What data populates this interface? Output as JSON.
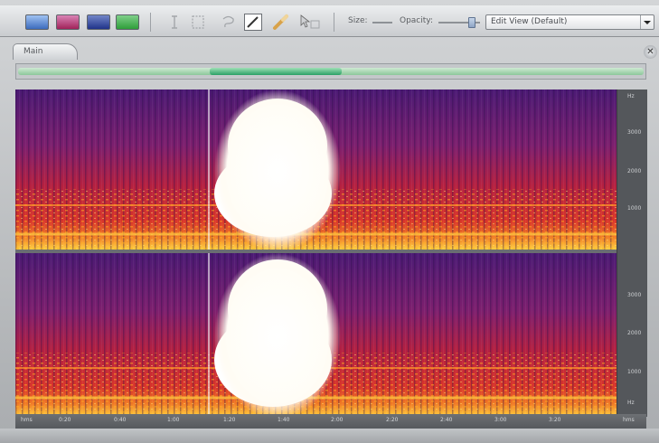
{
  "toolbar": {
    "buttons": [
      {
        "name": "spectral-frequency-display-button",
        "color": "#3c6bbd"
      },
      {
        "name": "spectral-pan-display-button",
        "color": "#a1235a"
      },
      {
        "name": "spectral-phase-display-button",
        "color": "#20338a"
      },
      {
        "name": "waveform-display-button",
        "color": "#2f9e3a"
      }
    ],
    "tools": [
      "time-selection-tool-icon",
      "marquee-tool-icon",
      "lasso-tool-icon",
      "brush-tool-icon",
      "spot-healing-tool-icon",
      "move-tool-icon"
    ],
    "size_label": "Size:",
    "opacity_label": "Opacity:",
    "view_select": "Edit View (Default)"
  },
  "tab": {
    "label": "Main"
  },
  "overview": {
    "visible_start": 0.31,
    "visible_end": 0.52
  },
  "frequency_ruler_top": [
    "Hz",
    "3000",
    "2000",
    "1000"
  ],
  "frequency_ruler_bottom": [
    "3000",
    "2000",
    "1000",
    "Hz"
  ],
  "time_ruler": [
    "hms",
    "0:20",
    "0:40",
    "1:00",
    "1:20",
    "1:40",
    "2:00",
    "2:20",
    "2:40",
    "3:00",
    "3:20",
    "hms"
  ],
  "colors": {
    "spectrum_low": "#4b1a74",
    "spectrum_mid": "#b52040",
    "spectrum_high": "#ffd040",
    "playhead": "#f4f4f4"
  }
}
